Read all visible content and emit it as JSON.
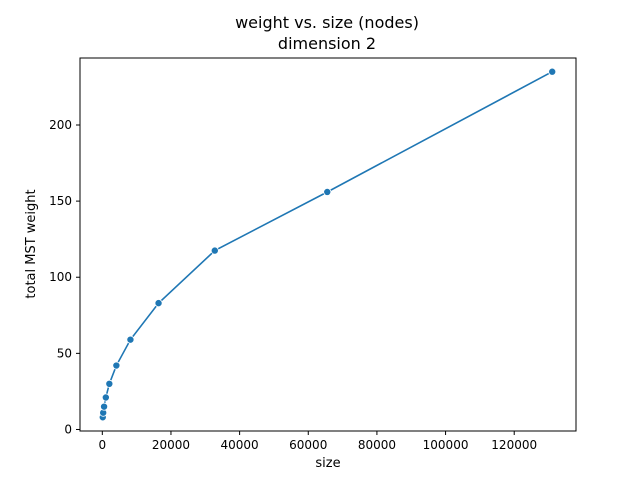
{
  "chart_data": {
    "type": "line",
    "title": "weight vs. size (nodes)",
    "subtitle": "dimension 2",
    "xlabel": "size",
    "ylabel": "total MST weight",
    "xlim": [
      -6500,
      138000
    ],
    "ylim": [
      -1,
      244
    ],
    "xticks": [
      0,
      20000,
      40000,
      60000,
      80000,
      100000,
      120000
    ],
    "xtick_labels": [
      "0",
      "20000",
      "40000",
      "60000",
      "80000",
      "100000",
      "120000"
    ],
    "yticks": [
      0,
      50,
      100,
      150,
      200
    ],
    "ytick_labels": [
      "0",
      "50",
      "100",
      "150",
      "200"
    ],
    "grid": false,
    "line_color": "#1f77b4",
    "marker": "circle",
    "series": [
      {
        "x": [
          128,
          256,
          512,
          1024,
          2048,
          4096,
          8192,
          16384,
          32768,
          65536,
          131072
        ],
        "y": [
          8,
          11,
          15,
          21,
          30,
          42,
          59,
          83,
          117.5,
          156,
          235
        ]
      }
    ]
  }
}
